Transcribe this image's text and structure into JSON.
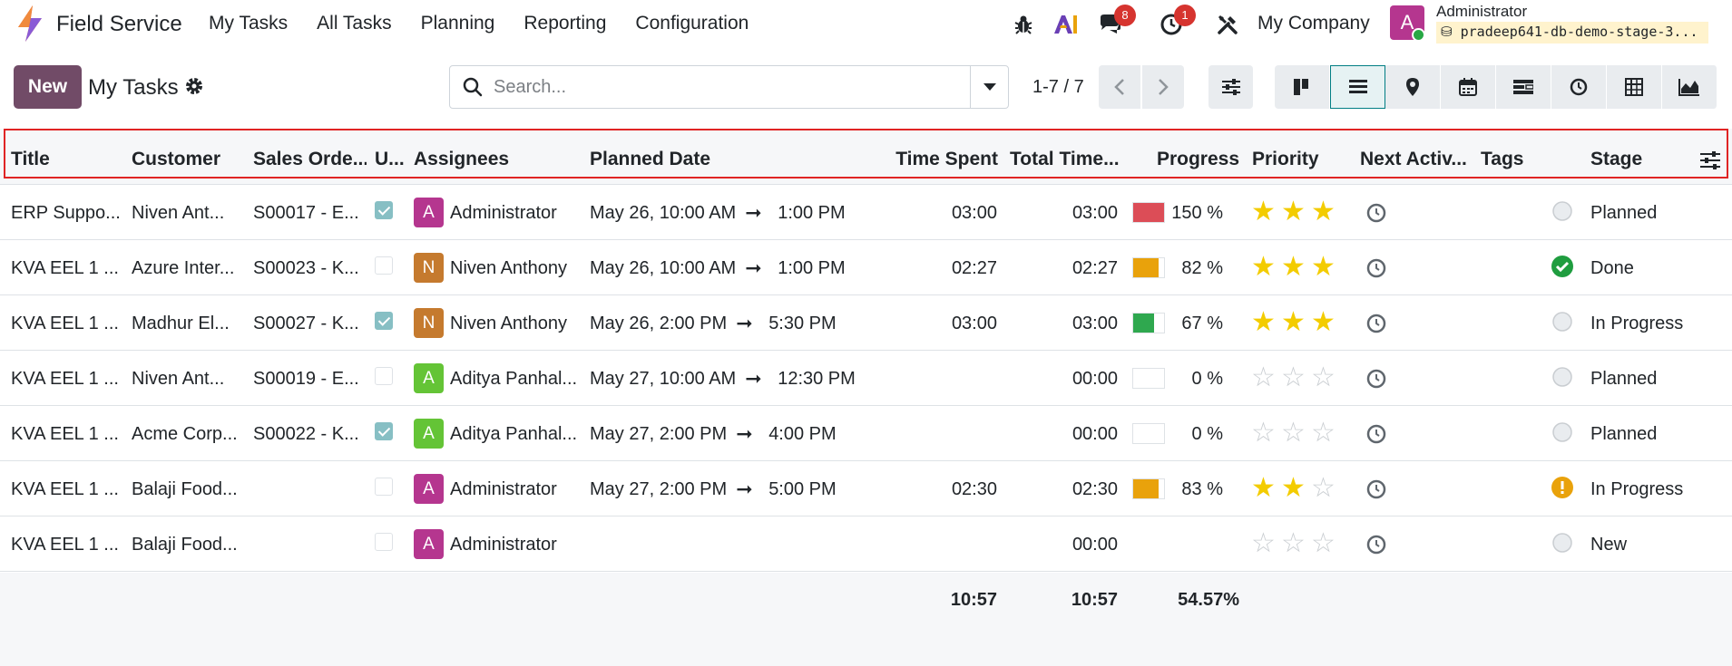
{
  "app": {
    "name": "Field Service",
    "menu": [
      "My Tasks",
      "All Tasks",
      "Planning",
      "Reporting",
      "Configuration"
    ],
    "messages_count": "8",
    "activities_count": "1",
    "company": "My Company",
    "user_initial": "A",
    "user_name": "Administrator",
    "db_name": "pradeep641-db-demo-stage-3..."
  },
  "control": {
    "new_label": "New",
    "page_title": "My Tasks",
    "search_placeholder": "Search...",
    "pager": "1-7 / 7"
  },
  "columns": [
    "Title",
    "Customer",
    "Sales Orde...",
    "U...",
    "Assignees",
    "Planned Date",
    "Time Spent",
    "Total Time...",
    "Progress",
    "Priority",
    "Next Activ...",
    "Tags",
    "Stage"
  ],
  "rows": [
    {
      "title": "ERP Suppo...",
      "customer": "Niven Ant...",
      "so": "S00017 - E...",
      "checked": true,
      "av_initial": "A",
      "av_color": "#b5368f",
      "assignee": "Administrator",
      "date_start": "May 26, 10:00 AM",
      "date_end": "1:00 PM",
      "time_spent": "03:00",
      "total_time": "03:00",
      "progress": 150,
      "progress_text": "150 %",
      "progress_color": "#dc4d57",
      "priority": 3,
      "stage_state": "normal",
      "stage": "Planned"
    },
    {
      "title": "KVA EEL 1 ...",
      "customer": "Azure Inter...",
      "so": "S00023 - K...",
      "checked": false,
      "av_initial": "N",
      "av_color": "#c57a2e",
      "assignee": "Niven Anthony",
      "date_start": "May 26, 10:00 AM",
      "date_end": "1:00 PM",
      "time_spent": "02:27",
      "total_time": "02:27",
      "progress": 82,
      "progress_text": "82 %",
      "progress_color": "#e9a20b",
      "priority": 3,
      "stage_state": "done",
      "stage": "Done"
    },
    {
      "title": "KVA EEL 1 ...",
      "customer": "Madhur El...",
      "so": "S00027 - K...",
      "checked": true,
      "av_initial": "N",
      "av_color": "#c57a2e",
      "assignee": "Niven Anthony",
      "date_start": "May 26, 2:00 PM",
      "date_end": "5:30 PM",
      "time_spent": "03:00",
      "total_time": "03:00",
      "progress": 67,
      "progress_text": "67 %",
      "progress_color": "#2fa84f",
      "priority": 3,
      "stage_state": "normal",
      "stage": "In Progress"
    },
    {
      "title": "KVA EEL 1 ...",
      "customer": "Niven Ant...",
      "so": "S00019 - E...",
      "checked": false,
      "av_initial": "A",
      "av_color": "#64c436",
      "assignee": "Aditya Panhal...",
      "date_start": "May 27, 10:00 AM",
      "date_end": "12:30 PM",
      "time_spent": "",
      "total_time": "00:00",
      "progress": 0,
      "progress_text": "0 %",
      "progress_color": "#2fa84f",
      "priority": 0,
      "stage_state": "normal",
      "stage": "Planned"
    },
    {
      "title": "KVA EEL 1 ...",
      "customer": "Acme Corp...",
      "so": "S00022 - K...",
      "checked": true,
      "av_initial": "A",
      "av_color": "#64c436",
      "assignee": "Aditya Panhal...",
      "date_start": "May 27, 2:00 PM",
      "date_end": "4:00 PM",
      "time_spent": "",
      "total_time": "00:00",
      "progress": 0,
      "progress_text": "0 %",
      "progress_color": "#2fa84f",
      "priority": 0,
      "stage_state": "normal",
      "stage": "Planned"
    },
    {
      "title": "KVA EEL 1 ...",
      "customer": "Balaji Food...",
      "so": "",
      "checked": false,
      "av_initial": "A",
      "av_color": "#b5368f",
      "assignee": "Administrator",
      "date_start": "May 27, 2:00 PM",
      "date_end": "5:00 PM",
      "time_spent": "02:30",
      "total_time": "02:30",
      "progress": 83,
      "progress_text": "83 %",
      "progress_color": "#e9a20b",
      "priority": 2,
      "stage_state": "blocked",
      "stage": "In Progress"
    },
    {
      "title": "KVA EEL 1 ...",
      "customer": "Balaji Food...",
      "so": "",
      "checked": false,
      "av_initial": "A",
      "av_color": "#b5368f",
      "assignee": "Administrator",
      "date_start": "",
      "date_end": "",
      "time_spent": "",
      "total_time": "00:00",
      "progress": null,
      "progress_text": "",
      "progress_color": "",
      "priority": 0,
      "stage_state": "normal",
      "stage": "New"
    }
  ],
  "totals": {
    "time_spent": "10:57",
    "total_time": "10:57",
    "progress": "54.57%"
  }
}
